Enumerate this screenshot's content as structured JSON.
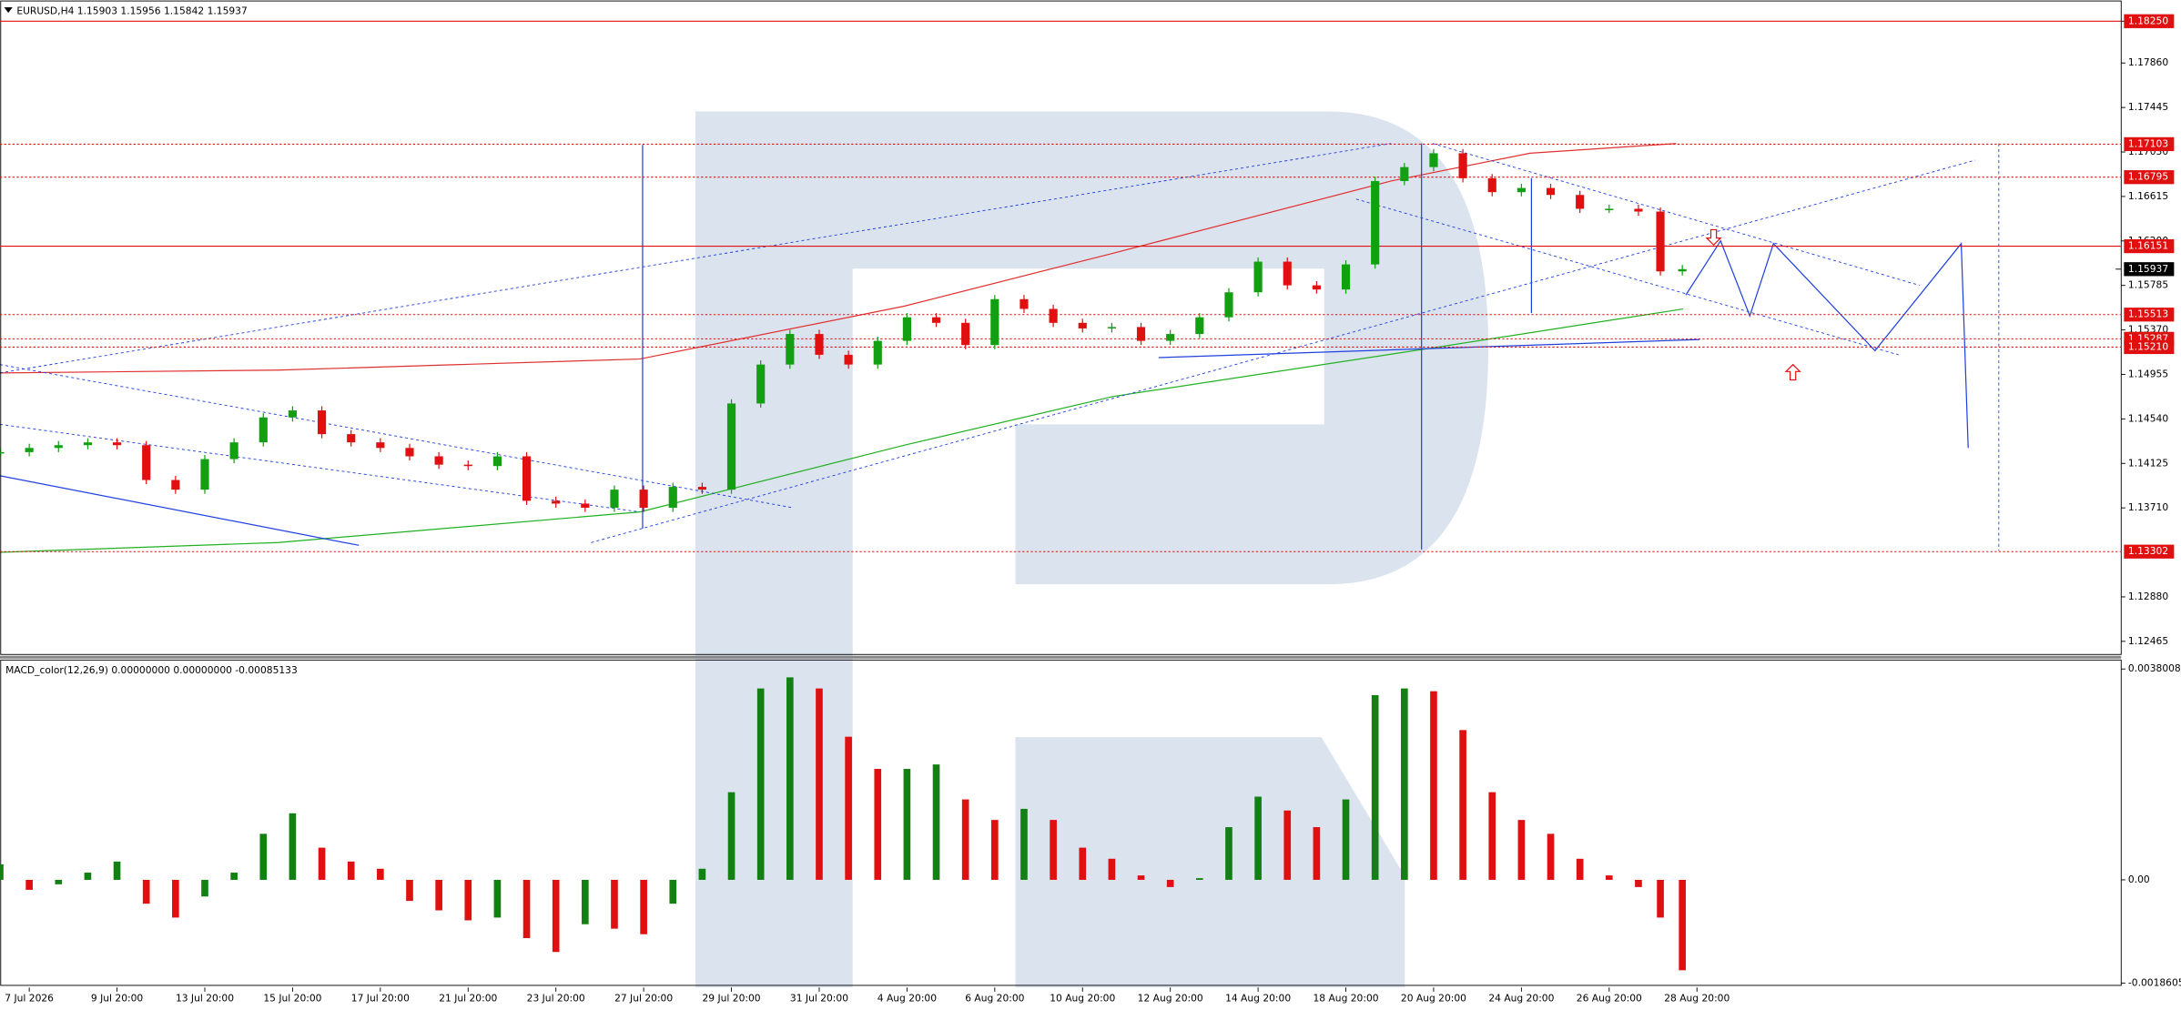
{
  "chart_data": [
    {
      "type": "candlestick",
      "title": "EURUSD,H4  1.15903 1.15956 1.15842 1.15937",
      "x": [
        0,
        4,
        8,
        12,
        16,
        20,
        24,
        28,
        32,
        36,
        40,
        44,
        48,
        52,
        56,
        60,
        64,
        68,
        72,
        76,
        80,
        84,
        88,
        92,
        96,
        100,
        104,
        108,
        112,
        116,
        120,
        124,
        128,
        132,
        136,
        140,
        144,
        148,
        152,
        156,
        160,
        164,
        168,
        172,
        176,
        180,
        184,
        188,
        192,
        196,
        200,
        204,
        208,
        212,
        216,
        220,
        224,
        227,
        230
      ],
      "series": [
        {
          "name": "EURUSD",
          "up_color": "#12a012",
          "down_color": "#e01010",
          "values": [
            1.1423,
            1.14269,
            1.14295,
            1.14321,
            1.14295,
            1.1397,
            1.1388,
            1.14165,
            1.14321,
            1.14554,
            1.14619,
            1.14398,
            1.14321,
            1.14269,
            1.14191,
            1.14113,
            1.141,
            1.14191,
            1.13776,
            1.1375,
            1.13711,
            1.1388,
            1.13711,
            1.13906,
            1.1388,
            1.14684,
            1.15047,
            1.15332,
            1.15138,
            1.15047,
            1.15268,
            1.15488,
            1.15436,
            1.15229,
            1.15657,
            1.15566,
            1.15436,
            1.15384,
            1.15397,
            1.15268,
            1.15332,
            1.15488,
            1.15721,
            1.16007,
            1.15786,
            1.15747,
            1.15981,
            1.16759,
            1.16889,
            1.17018,
            1.16785,
            1.16655,
            1.16694,
            1.16629,
            1.165,
            1.165,
            1.16474,
            1.15916,
            1.15937
          ]
        }
      ],
      "xlim": [
        0,
        290
      ],
      "ylim": [
        1.12349,
        1.18445
      ],
      "yticks": [
        {
          "value": 1.1825,
          "label": "1.18250"
        },
        {
          "value": 1.1786,
          "label": "1.17860"
        },
        1.17445,
        {
          "value": 1.1703,
          "label": "1.17030"
        },
        1.16615,
        {
          "value": 1.162,
          "label": "1.16200"
        },
        1.15785,
        {
          "value": 1.1537,
          "label": "1.15370"
        },
        1.14955,
        {
          "value": 1.1454,
          "label": "1.14540"
        },
        1.14125,
        {
          "value": 1.1371,
          "label": "1.13710"
        },
        {
          "value": 1.1288,
          "label": "1.12880"
        },
        1.12465
      ],
      "solid_levels": [
        {
          "value": 1.1825,
          "label": "1.18250"
        },
        1.16151
      ],
      "dotted_levels": [
        1.17103,
        1.16795,
        1.15513,
        1.15287,
        {
          "value": 1.1521,
          "label": "1.15210"
        },
        1.13302
      ],
      "level_color": "#e01010",
      "last_price": 1.15937
    },
    {
      "type": "bar",
      "title": "MACD_color(12,26,9) 0.00000000 0.00000000 -0.00085133",
      "x": [
        0,
        4,
        8,
        12,
        16,
        20,
        24,
        28,
        32,
        36,
        40,
        44,
        48,
        52,
        56,
        60,
        64,
        68,
        72,
        76,
        80,
        84,
        88,
        92,
        96,
        100,
        104,
        108,
        112,
        116,
        120,
        124,
        128,
        132,
        136,
        140,
        144,
        148,
        152,
        156,
        160,
        164,
        168,
        172,
        176,
        180,
        184,
        188,
        192,
        196,
        200,
        204,
        208,
        212,
        216,
        220,
        224,
        227,
        230
      ],
      "series": [
        {
          "name": "MACD",
          "up_color": "#128012",
          "down_color": "#e01010",
          "values": [
            0.00028,
            -0.00018,
            -8e-05,
            0.00013,
            0.00033,
            -0.00043,
            -0.00068,
            -0.0003,
            0.00013,
            0.00083,
            0.0012,
            0.00058,
            0.00033,
            0.0002,
            -0.00038,
            -0.00055,
            -0.00073,
            -0.00068,
            -0.00105,
            -0.0013,
            -0.0008,
            -0.00088,
            -0.00098,
            -0.00043,
            0.0002,
            0.00158,
            0.00345,
            0.00365,
            0.00345,
            0.00258,
            0.002,
            0.002,
            0.00208,
            0.00145,
            0.00108,
            0.00128,
            0.00108,
            0.00058,
            0.00038,
            8e-05,
            -0.00013,
            3e-05,
            0.00095,
            0.0015,
            0.00125,
            0.00095,
            0.00145,
            0.00333,
            0.00345,
            0.0034,
            0.0027,
            0.00158,
            0.00108,
            0.00083,
            0.00038,
            8e-05,
            -0.00013,
            -0.00068,
            -0.00163
          ]
        }
      ],
      "xlim": [
        0,
        290
      ],
      "ylim": [
        -0.00194,
        0.00395
      ],
      "yticks": [
        0.0038008,
        {
          "value": 0,
          "label": "0.00"
        },
        -0.0018605
      ],
      "xticks": [
        {
          "value": 4,
          "label": "7 Jul 2026"
        },
        {
          "value": 16,
          "label": "9 Jul 20:00"
        },
        {
          "value": 28,
          "label": "13 Jul 20:00"
        },
        {
          "value": 40,
          "label": "15 Jul 20:00"
        },
        {
          "value": 52,
          "label": "17 Jul 20:00"
        },
        {
          "value": 64,
          "label": "21 Jul 20:00"
        },
        {
          "value": 76,
          "label": "23 Jul 20:00"
        },
        {
          "value": 88,
          "label": "27 Jul 20:00"
        },
        {
          "value": 100,
          "label": "29 Jul 20:00"
        },
        {
          "value": 112,
          "label": "31 Jul 20:00"
        },
        {
          "value": 124,
          "label": "4 Aug 20:00"
        },
        {
          "value": 136,
          "label": "6 Aug 20:00"
        },
        {
          "value": 148,
          "label": "10 Aug 20:00"
        },
        {
          "value": 160,
          "label": "12 Aug 20:00"
        },
        {
          "value": 172,
          "label": "14 Aug 20:00"
        },
        {
          "value": 184,
          "label": "18 Aug 20:00"
        },
        {
          "value": 196,
          "label": "20 Aug 20:00"
        },
        {
          "value": 208,
          "label": "24 Aug 20:00"
        },
        {
          "value": 220,
          "label": "26 Aug 20:00"
        },
        {
          "value": 232,
          "label": "28 Aug 20:00"
        }
      ]
    }
  ]
}
